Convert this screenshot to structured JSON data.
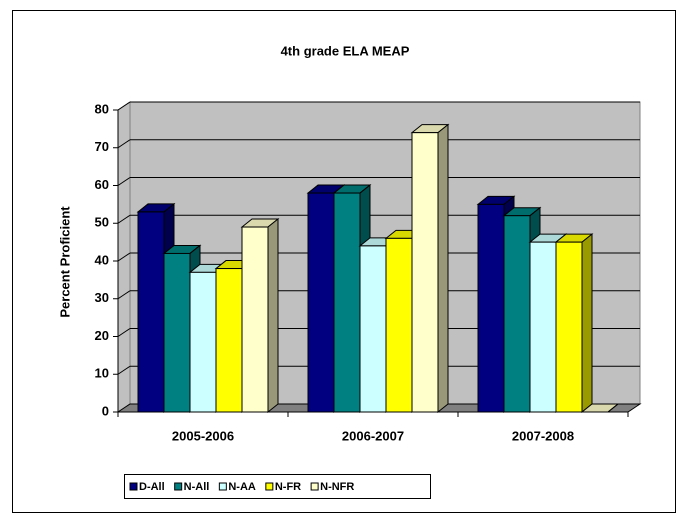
{
  "chart_data": {
    "type": "bar3d",
    "title": "4th grade ELA MEAP",
    "ylabel": "Percent Proficient",
    "categories": [
      "2005-2006",
      "2006-2007",
      "2007-2008"
    ],
    "series": [
      {
        "name": "D-All",
        "color": "#000080",
        "values": [
          53,
          58,
          55
        ]
      },
      {
        "name": "N-All",
        "color": "#008080",
        "values": [
          42,
          58,
          52
        ]
      },
      {
        "name": "N-AA",
        "color": "#ccffff",
        "values": [
          37,
          44,
          45
        ]
      },
      {
        "name": "N-FR",
        "color": "#ffff00",
        "values": [
          38,
          46,
          45
        ]
      },
      {
        "name": "N-NFR",
        "color": "#ffffcc",
        "values": [
          49,
          74,
          0
        ]
      }
    ],
    "ylim": [
      0,
      80
    ],
    "yticks": [
      0,
      10,
      20,
      30,
      40,
      50,
      60,
      70,
      80
    ],
    "grid": true,
    "legend": "bottom"
  }
}
